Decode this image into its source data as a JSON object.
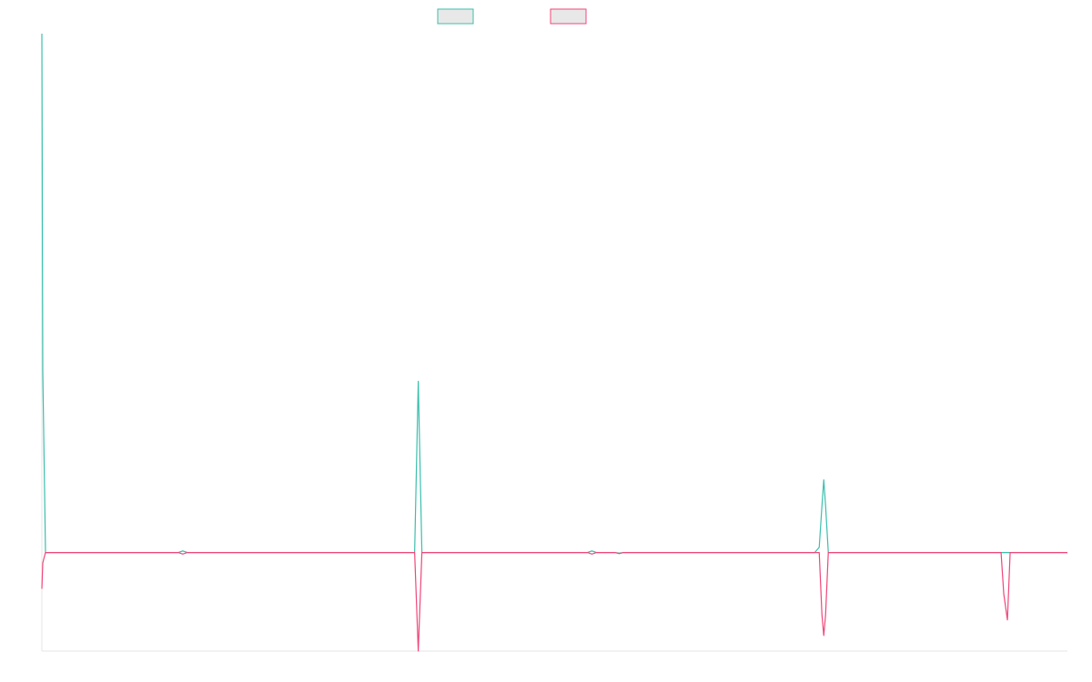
{
  "chart_data": {
    "type": "line",
    "title": "",
    "xlabel": "",
    "ylabel": "",
    "grid": false,
    "legend_position": "top-center",
    "xlim": [
      0,
      1128
    ],
    "ylim": [
      -0.19,
      1.0
    ],
    "x": [
      0,
      1,
      4,
      5,
      150,
      155,
      160,
      405,
      410,
      414,
      418,
      420,
      600,
      605,
      610,
      630,
      635,
      640,
      850,
      855,
      858,
      860,
      862,
      865,
      1055,
      1058,
      1062,
      1065,
      1128
    ],
    "series": [
      {
        "name": "",
        "color": "#3bbfad",
        "values": [
          1.0,
          0.35,
          0.0,
          0.0,
          0.0,
          0.003,
          0.0,
          0.0,
          0.0,
          0.33,
          0.0,
          0.0,
          0.0,
          0.003,
          0.0,
          0.0,
          -0.001,
          0.0,
          0.0,
          0.01,
          0.09,
          0.14,
          0.09,
          0.0,
          0.0,
          0.0,
          0.0,
          0.0,
          0.0
        ]
      },
      {
        "name": "",
        "color": "#f0477a",
        "values": [
          -0.07,
          -0.02,
          0.0,
          0.0,
          0.0,
          -0.003,
          0.0,
          0.0,
          0.0,
          -0.19,
          0.0,
          0.0,
          0.0,
          -0.003,
          0.0,
          0.0,
          -0.002,
          0.0,
          0.0,
          0.0,
          -0.12,
          -0.16,
          -0.12,
          0.0,
          0.0,
          -0.08,
          -0.13,
          0.0,
          0.0
        ]
      }
    ]
  },
  "legend": {
    "swatch_fill": "#e8e8e8"
  }
}
